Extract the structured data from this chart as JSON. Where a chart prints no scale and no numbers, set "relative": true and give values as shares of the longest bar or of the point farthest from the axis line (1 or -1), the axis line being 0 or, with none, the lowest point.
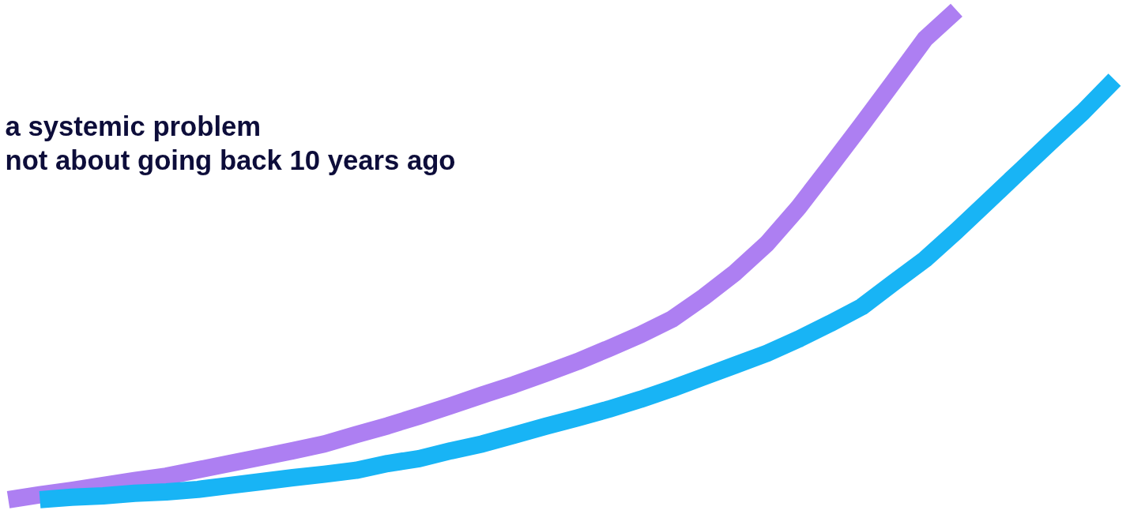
{
  "chart_data": {
    "type": "line",
    "title": "a systemic problem\nnot about going back 10 years ago",
    "relative": true,
    "categories": [
      null,
      null,
      null,
      null,
      null,
      null,
      null,
      null,
      null,
      null,
      null,
      null,
      null,
      null,
      null,
      null,
      null,
      null,
      null,
      null,
      null,
      null,
      null,
      null,
      null,
      null,
      null,
      null,
      null,
      null,
      null,
      null,
      null,
      null,
      null,
      null
    ],
    "series": [
      {
        "color": "#ad7ff2",
        "values": [
          0,
          0.01,
          0.019,
          0.029,
          0.039,
          0.048,
          0.061,
          0.074,
          0.087,
          0.1,
          0.114,
          0.133,
          0.151,
          0.171,
          0.192,
          0.214,
          0.235,
          0.258,
          0.282,
          0.309,
          0.337,
          0.369,
          0.414,
          0.464,
          0.523,
          0.597,
          0.681,
          0.766,
          0.853,
          0.941,
          1,
          null,
          null,
          null,
          null,
          null
        ]
      },
      {
        "color": "#18b4f5",
        "values": [
          null,
          0,
          0.005,
          0.008,
          0.013,
          0.016,
          0.021,
          0.029,
          0.037,
          0.045,
          0.052,
          0.06,
          0.074,
          0.084,
          0.1,
          0.114,
          0.132,
          0.15,
          0.167,
          0.185,
          0.205,
          0.227,
          0.251,
          0.275,
          0.299,
          0.328,
          0.36,
          0.394,
          0.443,
          0.491,
          0.549,
          0.61,
          0.671,
          0.732,
          0.792,
          0.858
        ]
      }
    ]
  }
}
